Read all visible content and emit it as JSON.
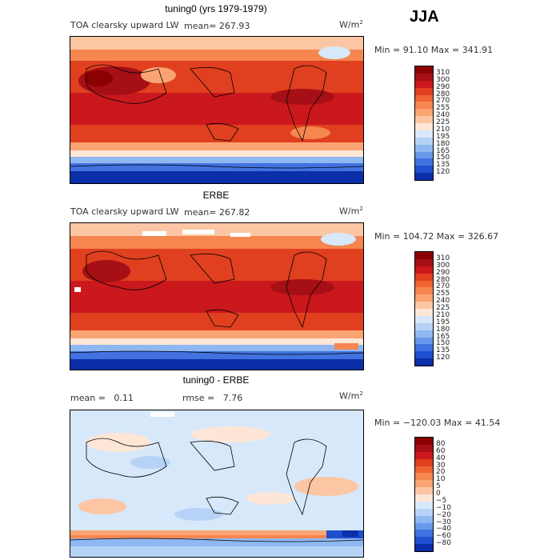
{
  "season": "JJA",
  "panels": [
    {
      "title": "tuning0 (yrs 1979-1979)",
      "variable": "TOA clearsky upward LW",
      "mean_label": "mean=",
      "mean": "267.93",
      "units": "W/m",
      "units_sup": "2",
      "minmax": "Min =  91.10 Max = 341.91",
      "colorbar": {
        "ticks": [
          "310",
          "300",
          "290",
          "280",
          "270",
          "255",
          "240",
          "225",
          "210",
          "195",
          "180",
          "165",
          "150",
          "135",
          "120"
        ],
        "colors": [
          "#8b0000",
          "#a50f15",
          "#cb181d",
          "#e0401f",
          "#ef6532",
          "#f5864f",
          "#fba473",
          "#fcc6a4",
          "#fde6d6",
          "#d7e8fb",
          "#b6d3f7",
          "#8fb8f2",
          "#6897ea",
          "#4172e0",
          "#1f4fcf",
          "#0a2fa8"
        ]
      }
    },
    {
      "title": "ERBE",
      "variable": "TOA clearsky upward LW",
      "mean_label": "mean=",
      "mean": "267.82",
      "units": "W/m",
      "units_sup": "2",
      "minmax": "Min = 104.72 Max = 326.67",
      "colorbar": {
        "ticks": [
          "310",
          "300",
          "290",
          "280",
          "270",
          "255",
          "240",
          "225",
          "210",
          "195",
          "180",
          "165",
          "150",
          "135",
          "120"
        ],
        "colors": [
          "#8b0000",
          "#a50f15",
          "#cb181d",
          "#e0401f",
          "#ef6532",
          "#f5864f",
          "#fba473",
          "#fcc6a4",
          "#fde6d6",
          "#d7e8fb",
          "#b6d3f7",
          "#8fb8f2",
          "#6897ea",
          "#4172e0",
          "#1f4fcf",
          "#0a2fa8"
        ]
      }
    },
    {
      "title": "tuning0 - ERBE",
      "mean_label": "mean =",
      "mean": "0.11",
      "rmse_label": "rmse =",
      "rmse": "7.76",
      "units": "W/m",
      "units_sup": "2",
      "minmax": "Min = −120.03 Max =  41.54",
      "colorbar": {
        "ticks": [
          "80",
          "60",
          "40",
          "30",
          "20",
          "10",
          "5",
          "0",
          "−5",
          "−10",
          "−20",
          "−30",
          "−40",
          "−60",
          "−80"
        ],
        "colors": [
          "#8b0000",
          "#a50f15",
          "#cb181d",
          "#e0401f",
          "#ef6532",
          "#f5864f",
          "#fba473",
          "#fcc6a4",
          "#fde6d6",
          "#d7e8fb",
          "#b6d3f7",
          "#8fb8f2",
          "#6897ea",
          "#4172e0",
          "#1f4fcf",
          "#0a2fa8"
        ]
      }
    }
  ]
}
